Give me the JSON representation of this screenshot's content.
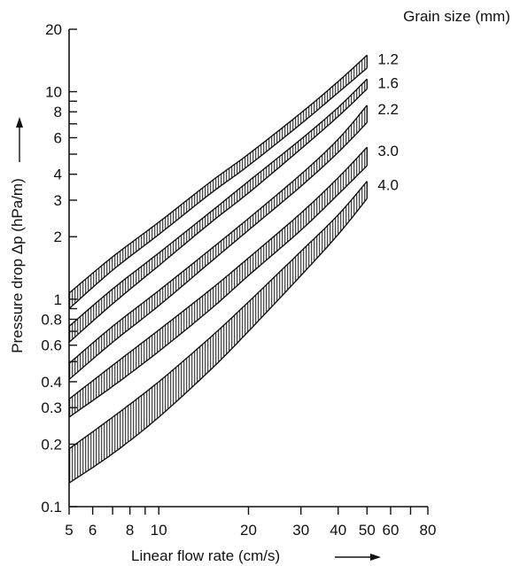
{
  "chart_data": {
    "type": "area",
    "xlabel": "Linear flow rate (cm/s)",
    "ylabel": "Pressure drop Δp (hPa/m)",
    "x_scale": "log",
    "y_scale": "log",
    "xlim": [
      5,
      80
    ],
    "ylim": [
      0.1,
      20
    ],
    "x_ticks": [
      5,
      6,
      7,
      8,
      9,
      10,
      20,
      30,
      40,
      50,
      60,
      70,
      80
    ],
    "x_tick_labels": [
      "5",
      "6",
      "8",
      "10",
      "20",
      "30",
      "40",
      "50",
      "60",
      "80"
    ],
    "x_tick_label_values": [
      5,
      6,
      8,
      10,
      20,
      30,
      40,
      50,
      60,
      80
    ],
    "y_ticks": [
      0.1,
      0.2,
      0.3,
      0.4,
      0.5,
      0.6,
      0.7,
      0.8,
      0.9,
      1,
      2,
      3,
      4,
      5,
      6,
      7,
      8,
      9,
      10,
      20
    ],
    "y_tick_labels": [
      "0.1",
      "0.2",
      "0.3",
      "0.4",
      "0.6",
      "0.8",
      "1",
      "2",
      "3",
      "4",
      "6",
      "8",
      "10",
      "20"
    ],
    "y_tick_label_values": [
      0.1,
      0.2,
      0.3,
      0.4,
      0.6,
      0.8,
      1,
      2,
      3,
      4,
      6,
      8,
      10,
      20
    ],
    "legend_title": "Grain size (mm)",
    "grid": false,
    "series": [
      {
        "name": "1.2",
        "x": [
          5,
          7,
          10,
          15,
          20,
          30,
          40,
          50
        ],
        "y_upper": [
          1.07,
          1.6,
          2.35,
          3.7,
          5.0,
          7.9,
          11.2,
          15.0
        ],
        "y_lower": [
          0.9,
          1.38,
          2.05,
          3.25,
          4.4,
          7.0,
          9.9,
          13.0
        ]
      },
      {
        "name": "1.6",
        "x": [
          5,
          7,
          10,
          15,
          20,
          30,
          40,
          50
        ],
        "y_upper": [
          0.74,
          1.12,
          1.67,
          2.65,
          3.7,
          5.9,
          8.4,
          11.5
        ],
        "y_lower": [
          0.62,
          0.95,
          1.45,
          2.35,
          3.25,
          5.3,
          7.6,
          10.3
        ]
      },
      {
        "name": "2.2",
        "x": [
          5,
          7,
          10,
          15,
          20,
          30,
          40,
          50
        ],
        "y_upper": [
          0.49,
          0.74,
          1.1,
          1.75,
          2.45,
          4.0,
          5.9,
          8.6
        ],
        "y_lower": [
          0.41,
          0.62,
          0.93,
          1.52,
          2.15,
          3.5,
          5.1,
          7.1
        ]
      },
      {
        "name": "3.0",
        "x": [
          5,
          7,
          10,
          15,
          20,
          30,
          40,
          50
        ],
        "y_upper": [
          0.33,
          0.48,
          0.71,
          1.12,
          1.58,
          2.6,
          3.85,
          5.4
        ],
        "y_lower": [
          0.27,
          0.38,
          0.56,
          0.9,
          1.3,
          2.15,
          3.2,
          4.4
        ]
      },
      {
        "name": "4.0",
        "x": [
          5,
          7,
          10,
          15,
          20,
          30,
          40,
          50
        ],
        "y_upper": [
          0.19,
          0.27,
          0.4,
          0.66,
          0.97,
          1.7,
          2.55,
          3.7
        ],
        "y_lower": [
          0.13,
          0.18,
          0.27,
          0.46,
          0.7,
          1.3,
          2.05,
          3.05
        ]
      }
    ]
  }
}
